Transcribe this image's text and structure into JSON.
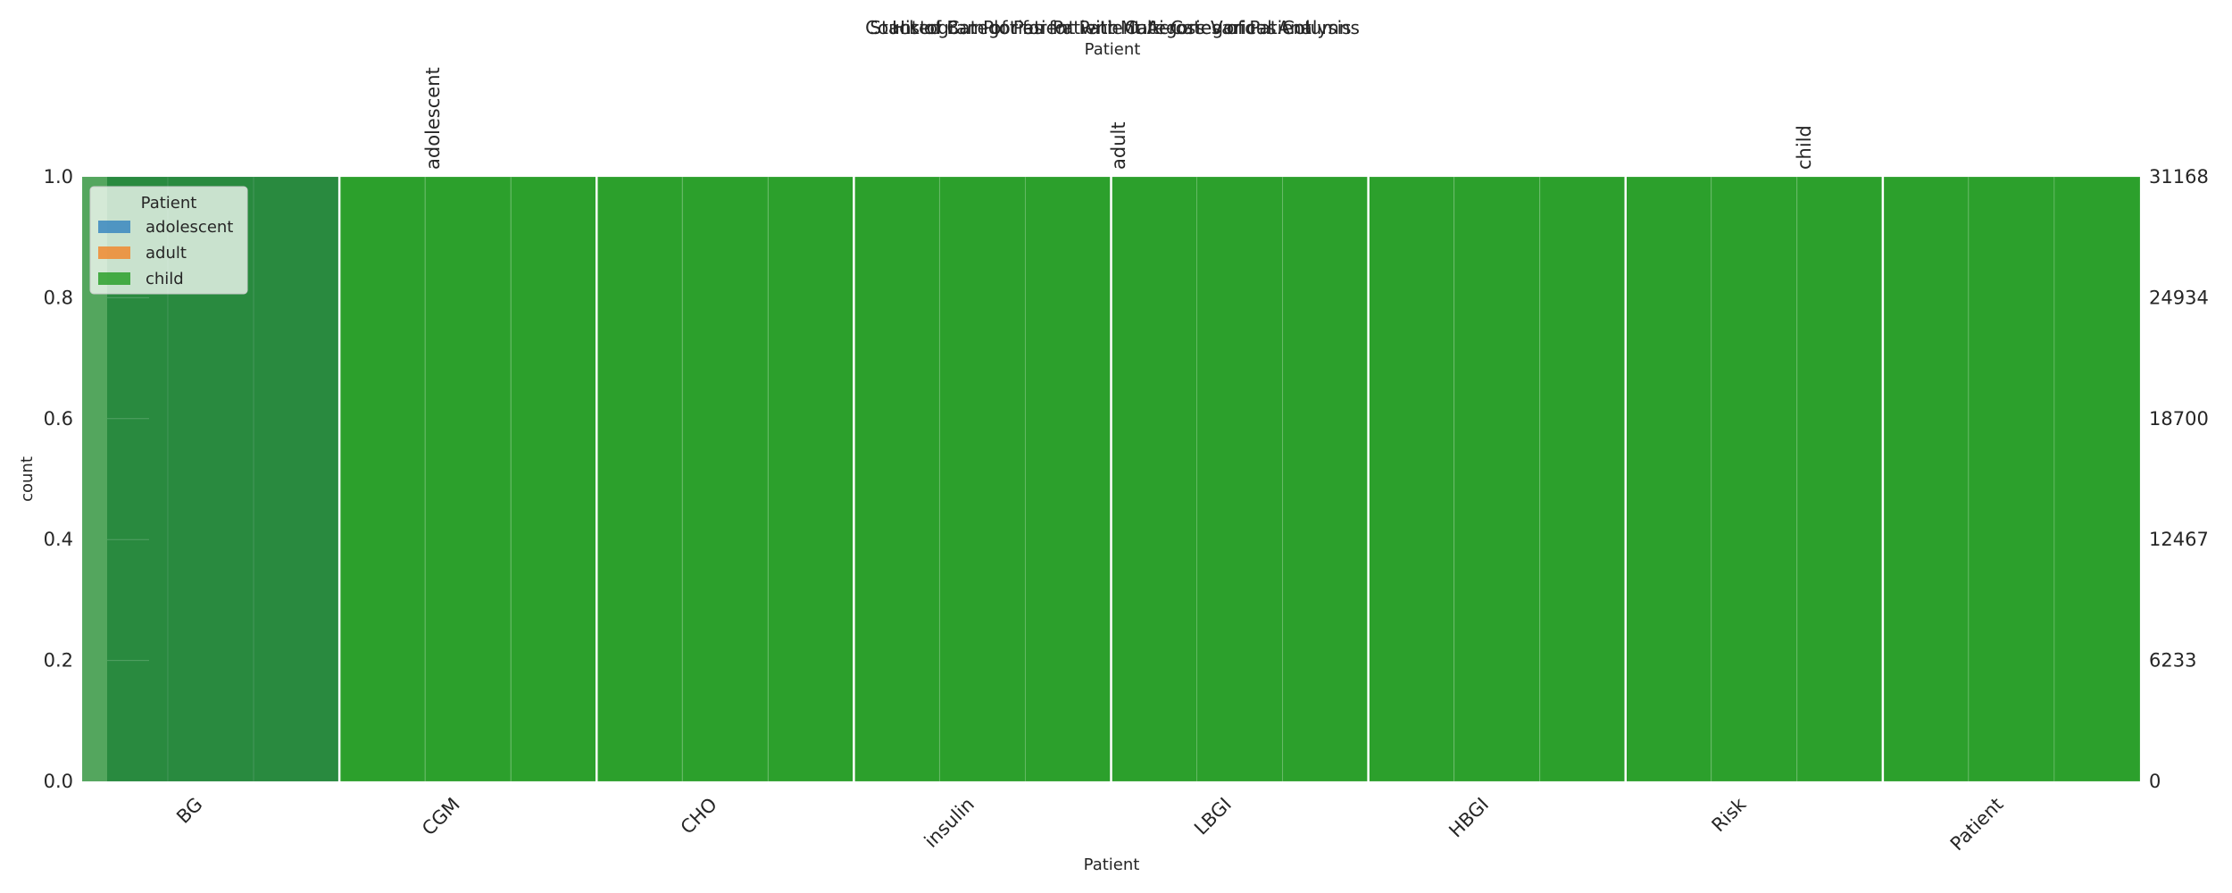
{
  "chart_data": {
    "type": "bar",
    "titles": [
      "Count of Categories for Patient Across Various Columns",
      "Histogram of Patient with Categories of Patient",
      "Stacked Bar Plot for Patient Multi-Categorical Analysis"
    ],
    "top_axis_label": "Patient",
    "xlabel": "Patient",
    "ylabel": "count",
    "categories": [
      "BG",
      "CGM",
      "CHO",
      "insulin",
      "LBGI",
      "HBGI",
      "Risk",
      "Patient"
    ],
    "top_categories": [
      "adolescent",
      "adult",
      "child"
    ],
    "ylim": [
      0,
      1.0
    ],
    "left_ticks": [
      "0.0",
      "0.2",
      "0.4",
      "0.6",
      "0.8",
      "1.0"
    ],
    "right_ticks": [
      "0",
      "6233",
      "12467",
      "18700",
      "24934",
      "31168"
    ],
    "right_ylim": [
      0,
      31168
    ],
    "series": [
      {
        "name": "adolescent",
        "values": [
          1,
          1,
          1,
          1,
          1,
          1,
          1,
          1
        ]
      },
      {
        "name": "adult",
        "values": [
          1,
          1,
          1,
          1,
          1,
          1,
          1,
          1
        ]
      },
      {
        "name": "child",
        "values": [
          1,
          1,
          1,
          1,
          1,
          1,
          1,
          1
        ]
      }
    ],
    "legend": {
      "title": "Patient",
      "entries": [
        "adolescent",
        "adult",
        "child"
      ],
      "placement": "top-left"
    },
    "colors": {
      "adolescent": "#3a87c0",
      "adult": "#f08a30",
      "child": "#2ca02c"
    },
    "grid": false
  }
}
